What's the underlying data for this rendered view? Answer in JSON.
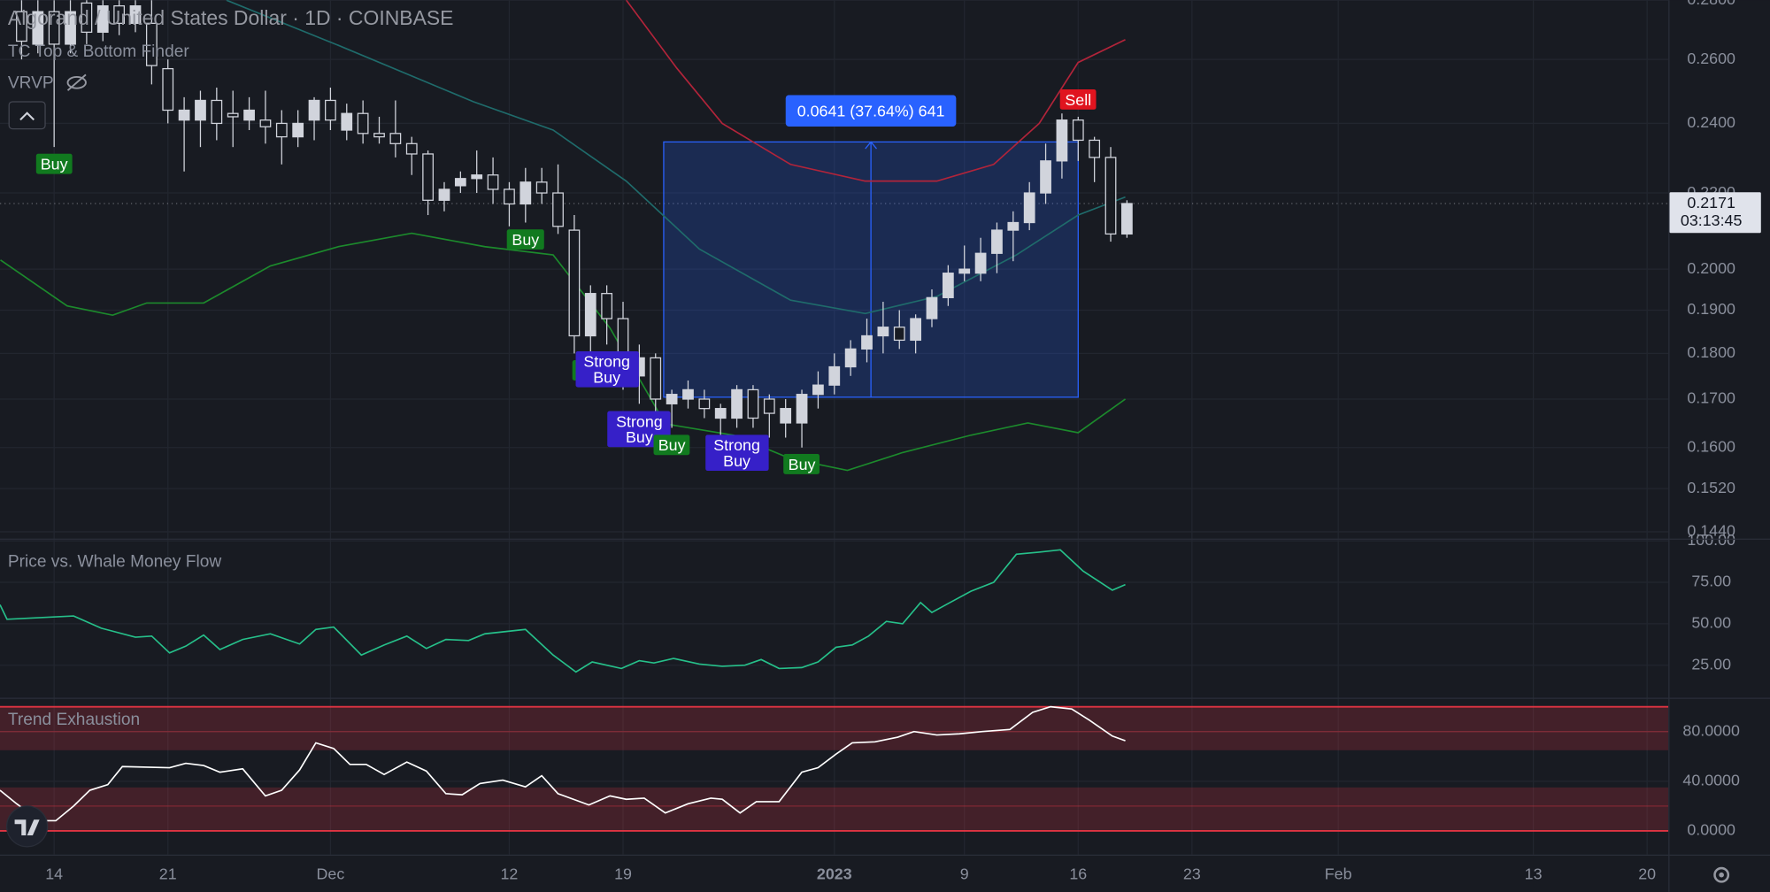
{
  "chart_data": [
    {
      "type": "candlestick",
      "title": "Algorand / United States Dollar · 1D · COINBASE",
      "indicators": [
        "TC Top & Bottom Finder",
        "VRVP"
      ],
      "open": [
        0.276,
        0.265,
        0.276,
        0.265,
        0.279,
        0.269,
        0.278,
        0.272,
        0.272,
        0.257,
        0.241,
        0.241,
        0.247,
        0.243,
        0.241,
        0.241,
        0.24,
        0.236,
        0.241,
        0.247,
        0.238,
        0.243,
        0.237,
        0.237,
        0.234,
        0.231,
        0.218,
        0.222,
        0.224,
        0.225,
        0.221,
        0.217,
        0.223,
        0.22,
        0.21,
        0.184,
        0.194,
        0.188,
        0.175,
        0.179,
        0.169,
        0.17,
        0.17,
        0.166,
        0.166,
        0.172,
        0.17,
        0.165,
        0.165,
        0.171,
        0.173,
        0.177,
        0.181,
        0.184,
        0.186,
        0.183,
        0.188,
        0.193,
        0.199,
        0.199,
        0.204,
        0.21,
        0.212,
        0.22,
        0.229,
        0.241,
        0.235,
        0.23,
        0.209
      ],
      "high": [
        0.28,
        0.28,
        0.28,
        0.28,
        0.28,
        0.28,
        0.28,
        0.28,
        0.28,
        0.26,
        0.248,
        0.25,
        0.251,
        0.25,
        0.248,
        0.25,
        0.244,
        0.244,
        0.248,
        0.251,
        0.246,
        0.247,
        0.242,
        0.247,
        0.236,
        0.232,
        0.223,
        0.226,
        0.232,
        0.23,
        0.223,
        0.227,
        0.227,
        0.228,
        0.214,
        0.196,
        0.196,
        0.192,
        0.182,
        0.18,
        0.172,
        0.174,
        0.172,
        0.169,
        0.173,
        0.173,
        0.171,
        0.17,
        0.172,
        0.176,
        0.18,
        0.183,
        0.188,
        0.192,
        0.19,
        0.189,
        0.195,
        0.201,
        0.206,
        0.208,
        0.212,
        0.215,
        0.223,
        0.234,
        0.243,
        0.242,
        0.236,
        0.233,
        0.218
      ],
      "low": [
        0.26,
        0.262,
        0.233,
        0.262,
        0.265,
        0.266,
        0.268,
        0.269,
        0.252,
        0.24,
        0.226,
        0.233,
        0.235,
        0.233,
        0.238,
        0.234,
        0.228,
        0.233,
        0.235,
        0.238,
        0.235,
        0.234,
        0.234,
        0.23,
        0.225,
        0.214,
        0.215,
        0.22,
        0.22,
        0.217,
        0.211,
        0.212,
        0.217,
        0.209,
        0.18,
        0.18,
        0.182,
        0.172,
        0.169,
        0.166,
        0.164,
        0.168,
        0.166,
        0.162,
        0.164,
        0.164,
        0.162,
        0.162,
        0.16,
        0.168,
        0.171,
        0.175,
        0.178,
        0.18,
        0.181,
        0.18,
        0.186,
        0.191,
        0.197,
        0.197,
        0.199,
        0.202,
        0.21,
        0.217,
        0.224,
        0.229,
        0.223,
        0.207,
        0.208
      ],
      "close": [
        0.266,
        0.276,
        0.265,
        0.276,
        0.269,
        0.278,
        0.272,
        0.278,
        0.258,
        0.244,
        0.244,
        0.247,
        0.24,
        0.242,
        0.244,
        0.239,
        0.236,
        0.24,
        0.247,
        0.241,
        0.243,
        0.237,
        0.236,
        0.234,
        0.231,
        0.218,
        0.221,
        0.224,
        0.225,
        0.221,
        0.217,
        0.223,
        0.22,
        0.211,
        0.184,
        0.194,
        0.188,
        0.175,
        0.179,
        0.17,
        0.171,
        0.172,
        0.168,
        0.168,
        0.172,
        0.166,
        0.167,
        0.168,
        0.171,
        0.173,
        0.177,
        0.181,
        0.184,
        0.186,
        0.183,
        0.188,
        0.193,
        0.199,
        0.2,
        0.204,
        0.21,
        0.212,
        0.22,
        0.229,
        0.241,
        0.235,
        0.23,
        0.209,
        0.2171
      ],
      "up_color": "#d1d4dc",
      "down_color": "#d1d4dc",
      "log_scale": true,
      "ylim": [
        0.144,
        0.28
      ],
      "yticks": [
        {
          "value": 0.28,
          "label": "0.2800"
        },
        {
          "value": 0.26,
          "label": "0.2600"
        },
        {
          "value": 0.24,
          "label": "0.2400"
        },
        {
          "value": 0.22,
          "label": "0.2200"
        },
        {
          "value": 0.2,
          "label": "0.2000"
        },
        {
          "value": 0.19,
          "label": "0.1900"
        },
        {
          "value": 0.18,
          "label": "0.1800"
        },
        {
          "value": 0.17,
          "label": "0.1700"
        },
        {
          "value": 0.16,
          "label": "0.1600"
        },
        {
          "value": 0.152,
          "label": "0.1520"
        },
        {
          "value": 0.144,
          "label": "0.1440"
        }
      ],
      "xlim": [
        -1.33,
        101.31
      ],
      "xticks": [
        {
          "value": 2,
          "label": "14"
        },
        {
          "value": 9,
          "label": "21"
        },
        {
          "value": 19,
          "label": "Dec"
        },
        {
          "value": 30,
          "label": "12"
        },
        {
          "value": 37,
          "label": "19"
        },
        {
          "value": 50,
          "label": "2023"
        },
        {
          "value": 58,
          "label": "9"
        },
        {
          "value": 65,
          "label": "16"
        },
        {
          "value": 72,
          "label": "23"
        },
        {
          "value": 81,
          "label": "Feb"
        },
        {
          "value": 93,
          "label": "13"
        },
        {
          "value": 100,
          "label": "20"
        }
      ],
      "grid": true,
      "overlays": [
        {
          "color": "#b2243a",
          "x": [
            37.2,
            40.3,
            43.1,
            47.3,
            51.9,
            56.3,
            59.8,
            62.6,
            65,
            67.9
          ],
          "values": [
            0.28,
            0.2572,
            0.24,
            0.228,
            0.2233,
            0.2233,
            0.228,
            0.24,
            0.259,
            0.2665
          ]
        },
        {
          "color": "#1f6b6b",
          "x": [
            12.6,
            19.5,
            27.8,
            32.7,
            37.2,
            41.7,
            47.3,
            51.9,
            56.3,
            61.2,
            65,
            67.9
          ],
          "values": [
            0.28,
            0.2646,
            0.2466,
            0.238,
            0.2233,
            0.2051,
            0.1924,
            0.1892,
            0.1933,
            0.2036,
            0.214,
            0.2189
          ]
        },
        {
          "color": "#1c8a2c",
          "x": [
            -1.3,
            2.8,
            5.6,
            7.7,
            11.2,
            15.3,
            19.5,
            24,
            28.5,
            32.7,
            36.2,
            39.6,
            43.8,
            47.3,
            50.8,
            54.2,
            58.4,
            61.9,
            65,
            67.9
          ],
          "values": [
            0.2023,
            0.191,
            0.1888,
            0.1917,
            0.1917,
            0.2008,
            0.2057,
            0.2092,
            0.2057,
            0.2036,
            0.1858,
            0.1648,
            0.1625,
            0.1578,
            0.1555,
            0.159,
            0.1625,
            0.165,
            0.163,
            0.17
          ]
        }
      ],
      "signals": [
        {
          "label": "Buy",
          "x": 2,
          "side": "below",
          "color": "#117a1f"
        },
        {
          "label": "Buy",
          "x": 31,
          "side": "below",
          "color": "#117a1f"
        },
        {
          "label": "Buy",
          "x": 35,
          "side": "below",
          "color": "#117a1f"
        },
        {
          "label": "Strong Buy",
          "x": 36,
          "side": "below",
          "color": "#3620c8"
        },
        {
          "label": "Strong Buy",
          "x": 38,
          "side": "below",
          "color": "#3620c8"
        },
        {
          "label": "Buy",
          "x": 40,
          "side": "below",
          "color": "#117a1f"
        },
        {
          "label": "Strong Buy",
          "x": 44,
          "side": "below",
          "color": "#3620c8"
        },
        {
          "label": "Buy",
          "x": 48,
          "side": "below",
          "color": "#117a1f"
        },
        {
          "label": "Sell",
          "x": 65,
          "side": "above",
          "color": "#e0141f"
        }
      ],
      "measure": {
        "x": [
          39.5,
          65
        ],
        "from": 0.1704,
        "to": 0.2345,
        "label": "0.0641 (37.64%) 641",
        "color": "#2962ff"
      },
      "last_price": 0.2171,
      "countdown": "03:13:45"
    },
    {
      "type": "line",
      "title": "Price vs. Whale Money Flow",
      "color": "#26c08a",
      "x": [
        -1.33,
        -0.9,
        3.2,
        4.9,
        7.0,
        8.0,
        9.1,
        10.1,
        11.2,
        12.2,
        13.6,
        15.3,
        17.1,
        18.1,
        19.2,
        20.9,
        22.3,
        23.7,
        24.9,
        26.1,
        27.5,
        28.5,
        31.0,
        32.7,
        34.1,
        35.1,
        36.9,
        38.0,
        38.9,
        40.1,
        41.7,
        43.1,
        44.5,
        45.5,
        46.6,
        48.0,
        49.0,
        50.1,
        51.1,
        52.1,
        53.2,
        54.2,
        55.3,
        56.0,
        57.0,
        58.4,
        59.8,
        61.2,
        62.6,
        63.9,
        65.3,
        67.1,
        67.9
      ],
      "values": [
        61.5,
        52.7,
        54.7,
        47.3,
        41.9,
        42.6,
        32.4,
        36.5,
        43.2,
        34.5,
        40.5,
        43.9,
        37.8,
        46.6,
        48.0,
        31.1,
        37.2,
        42.6,
        35.1,
        40.5,
        39.9,
        43.9,
        46.6,
        31.1,
        20.9,
        27.0,
        23.0,
        27.7,
        26.4,
        29.1,
        25.7,
        24.3,
        25.0,
        28.4,
        23.0,
        23.6,
        27.0,
        35.8,
        37.2,
        42.6,
        51.4,
        50.0,
        62.8,
        56.8,
        62.2,
        69.6,
        75.0,
        91.9,
        93.2,
        94.6,
        81.8,
        70.3,
        73.6
      ],
      "xlim": [
        -1.33,
        101.31
      ],
      "ylim": [
        5.4,
        100.7
      ],
      "yticks": [
        {
          "value": 100,
          "label": "100.00"
        },
        {
          "value": 75,
          "label": "75.00"
        },
        {
          "value": 50,
          "label": "50.00"
        },
        {
          "value": 25,
          "label": "25.00"
        }
      ]
    },
    {
      "type": "line",
      "title": "Trend Exhaustion",
      "color": "#ffffff",
      "x": [
        -1.33,
        -0.3,
        1.1,
        2.1,
        3.2,
        4.2,
        5.3,
        6.2,
        9.1,
        10.1,
        11.2,
        12.2,
        13.6,
        15.0,
        16.0,
        17.1,
        18.1,
        19.2,
        20.2,
        21.2,
        22.3,
        23.7,
        24.9,
        26.1,
        27.1,
        28.2,
        29.6,
        31.0,
        32.0,
        33.0,
        34.9,
        36.2,
        37.2,
        38.3,
        39.6,
        41.0,
        42.4,
        43.1,
        44.2,
        45.2,
        46.6,
        48.0,
        49.0,
        50.1,
        51.1,
        52.5,
        53.9,
        54.9,
        56.3,
        57.7,
        59.1,
        60.8,
        62.2,
        63.3,
        64.6,
        65.7,
        67.1,
        67.9
      ],
      "values": [
        32.7,
        21.8,
        8.2,
        8.2,
        20.0,
        32.7,
        37.3,
        51.8,
        50.9,
        54.5,
        52.7,
        47.3,
        50.0,
        28.2,
        32.7,
        49.1,
        70.9,
        66.4,
        53.6,
        53.6,
        45.5,
        55.5,
        48.2,
        30.0,
        29.1,
        38.2,
        40.9,
        35.5,
        44.5,
        30.0,
        20.9,
        28.2,
        25.5,
        26.4,
        14.5,
        21.8,
        26.4,
        25.5,
        14.5,
        23.6,
        23.6,
        47.3,
        50.9,
        61.8,
        70.9,
        71.8,
        75.5,
        80.0,
        77.3,
        78.2,
        80.0,
        81.8,
        95.5,
        100.0,
        98.2,
        89.1,
        76.4,
        72.7
      ],
      "xlim": [
        -1.33,
        101.31
      ],
      "ylim": [
        -19.1,
        105.5
      ],
      "yticks": [
        {
          "value": 80,
          "label": "80.0000"
        },
        {
          "value": 40,
          "label": "40.0000"
        },
        {
          "value": 0,
          "label": "0.0000"
        }
      ],
      "zones": [
        [
          65,
          100
        ],
        [
          0,
          35
        ]
      ],
      "levels": [
        100,
        80,
        20,
        0
      ],
      "zone_color": "#f23645"
    }
  ]
}
